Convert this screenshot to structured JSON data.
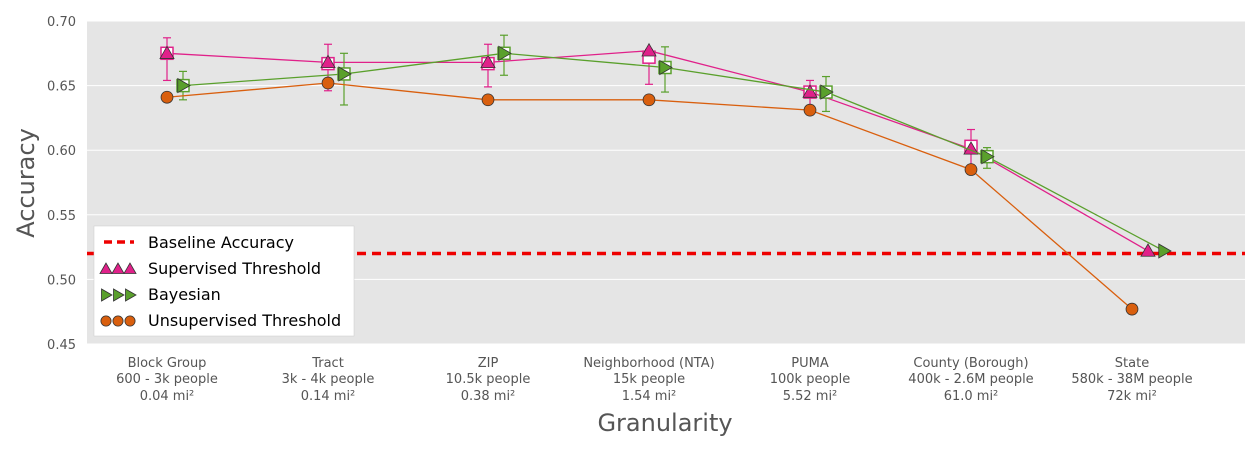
{
  "chart_data": {
    "type": "line",
    "xlabel": "Granularity",
    "ylabel": "Accuracy",
    "ylim": [
      0.45,
      0.7
    ],
    "yticks": [
      "0.45",
      "0.50",
      "0.55",
      "0.60",
      "0.65",
      "0.70"
    ],
    "grid": true,
    "legend_position": "lower-left",
    "categories": [
      {
        "name": "Block Group",
        "people": "600 - 3k people",
        "area": "0.04 mi²"
      },
      {
        "name": "Tract",
        "people": "3k - 4k people",
        "area": "0.14 mi²"
      },
      {
        "name": "ZIP",
        "people": "10.5k people",
        "area": "0.38 mi²"
      },
      {
        "name": "Neighborhood (NTA)",
        "people": "15k people",
        "area": "1.54 mi²"
      },
      {
        "name": "PUMA",
        "people": "100k people",
        "area": "5.52 mi²"
      },
      {
        "name": "County (Borough)",
        "people": "400k - 2.6M people",
        "area": "61.0 mi²"
      },
      {
        "name": "State",
        "people": "580k - 38M people",
        "area": "72k mi²"
      }
    ],
    "baseline": {
      "name": "Baseline Accuracy",
      "value": 0.52,
      "color": "#ee0000"
    },
    "series": [
      {
        "name": "Supervised Threshold",
        "marker": "triangle",
        "color": "#e0218a",
        "offset": 0,
        "values": [
          0.675,
          0.668,
          0.668,
          0.677,
          0.645,
          0.601,
          0.522
        ],
        "box_values": [
          0.675,
          0.667,
          0.667,
          0.672,
          0.645,
          0.603,
          null
        ],
        "err_low": [
          0.654,
          0.646,
          0.649,
          0.651,
          0.633,
          0.588,
          null
        ],
        "err_high": [
          0.687,
          0.682,
          0.682,
          0.678,
          0.654,
          0.616,
          null
        ]
      },
      {
        "name": "Bayesian",
        "marker": "triangle-right",
        "color": "#5aa02c",
        "offset": 1,
        "values": [
          0.65,
          0.659,
          0.675,
          0.664,
          0.645,
          0.595,
          0.522
        ],
        "box_values": [
          0.65,
          0.659,
          0.675,
          0.664,
          0.645,
          0.595,
          null
        ],
        "err_low": [
          0.639,
          0.635,
          0.658,
          0.645,
          0.63,
          0.586,
          null
        ],
        "err_high": [
          0.661,
          0.675,
          0.689,
          0.68,
          0.657,
          0.602,
          null
        ]
      },
      {
        "name": "Unsupervised Threshold",
        "marker": "circle",
        "color": "#d95f0e",
        "offset": 0,
        "values": [
          0.641,
          0.652,
          0.639,
          0.639,
          0.631,
          0.585,
          0.477
        ]
      }
    ]
  }
}
